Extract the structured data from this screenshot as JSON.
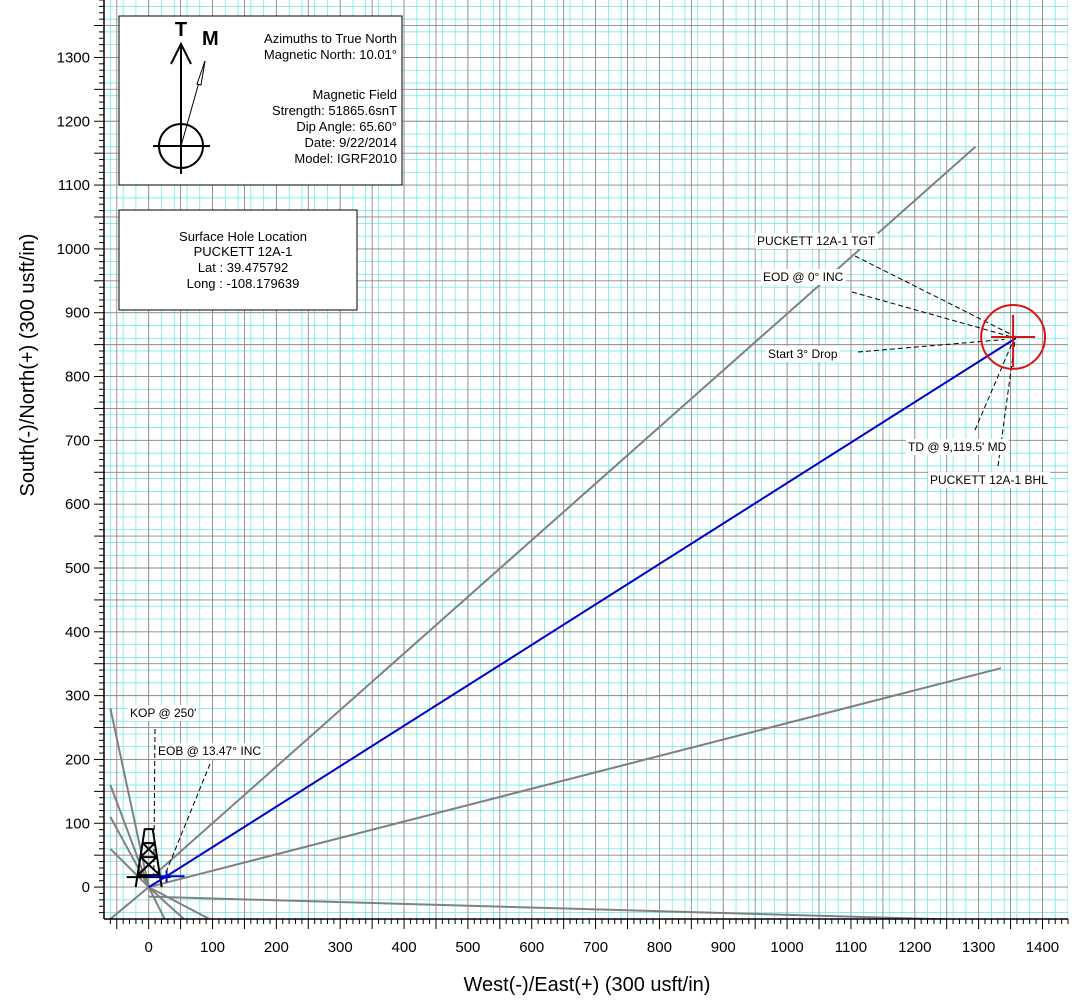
{
  "chart_data": {
    "type": "scatter",
    "xlabel": "West(-)/East(+) (300 usft/in)",
    "ylabel": "South(-)/North(+) (300 usft/in)",
    "xlim": [
      -70,
      1440
    ],
    "ylim": [
      -50,
      1390
    ],
    "x_ticks": [
      0,
      100,
      200,
      300,
      400,
      500,
      600,
      700,
      800,
      900,
      1000,
      1100,
      1200,
      1300,
      1400
    ],
    "y_ticks": [
      0,
      100,
      200,
      300,
      400,
      500,
      600,
      700,
      800,
      900,
      1000,
      1100,
      1200,
      1300
    ],
    "grid": true,
    "colors": {
      "minor_grid": "#66e6e6",
      "major_grid": "#8a8a8a",
      "well_path": "#0000cc",
      "target": "#dd1111",
      "offset_lines": "#808080"
    },
    "well_path": {
      "color": "#0000cc",
      "points": [
        [
          0,
          0
        ],
        [
          28,
          17
        ],
        [
          1358,
          860
        ]
      ]
    },
    "target": {
      "center": [
        1354,
        862
      ],
      "radius": 50,
      "color": "#dd1111"
    },
    "offset_lines": [
      {
        "points": [
          [
            12,
            22
          ],
          [
            1295,
            1160
          ]
        ]
      },
      {
        "points": [
          [
            0,
            0
          ],
          [
            1335,
            343
          ]
        ]
      },
      {
        "points": [
          [
            0,
            -15
          ],
          [
            1300,
            -52
          ]
        ]
      },
      {
        "points": [
          [
            0,
            0
          ],
          [
            -60,
            280
          ]
        ]
      },
      {
        "points": [
          [
            0,
            0
          ],
          [
            -60,
            160
          ]
        ]
      },
      {
        "points": [
          [
            0,
            0
          ],
          [
            -60,
            110
          ]
        ]
      },
      {
        "points": [
          [
            0,
            0
          ],
          [
            -60,
            60
          ]
        ]
      },
      {
        "points": [
          [
            0,
            0
          ],
          [
            -60,
            -50
          ]
        ]
      },
      {
        "points": [
          [
            0,
            0
          ],
          [
            95,
            -50
          ]
        ]
      },
      {
        "points": [
          [
            0,
            0
          ],
          [
            55,
            -50
          ]
        ]
      },
      {
        "points": [
          [
            0,
            0
          ],
          [
            25,
            -50
          ]
        ]
      }
    ],
    "annotations": [
      {
        "text": "PUCKETT 12A-1 TGT",
        "at": [
          1355,
          864
        ],
        "side": "left"
      },
      {
        "text": "EOD @ 0° INC",
        "at": [
          1352,
          862
        ],
        "side": "left"
      },
      {
        "text": "Start 3° Drop",
        "at": [
          1340,
          858
        ],
        "side": "left"
      },
      {
        "text": "TD @ 9,119.5' MD",
        "at": [
          1355,
          858
        ],
        "side": "below"
      },
      {
        "text": "PUCKETT 12A-1 BHL",
        "at": [
          1358,
          864
        ],
        "side": "below"
      },
      {
        "text": "KOP @ 250'",
        "at": [
          8,
          15
        ],
        "side": "above"
      },
      {
        "text": "EOB @ 13.47° INC",
        "at": [
          25,
          18
        ],
        "side": "above"
      }
    ]
  },
  "north_arrow": {
    "true_letter": "T",
    "magnetic_letter": "M"
  },
  "info_box": {
    "lines": [
      "Azimuths to True North",
      "Magnetic North: 10.01°",
      "",
      "Magnetic Field",
      "Strength: 51865.6snT",
      "Dip Angle: 65.60°",
      "Date: 9/22/2014",
      "Model: IGRF2010"
    ]
  },
  "location_box": {
    "lines": [
      "Surface Hole Location",
      "PUCKETT  12A-1",
      "Lat :  39.475792",
      "Long :  -108.179639"
    ]
  }
}
